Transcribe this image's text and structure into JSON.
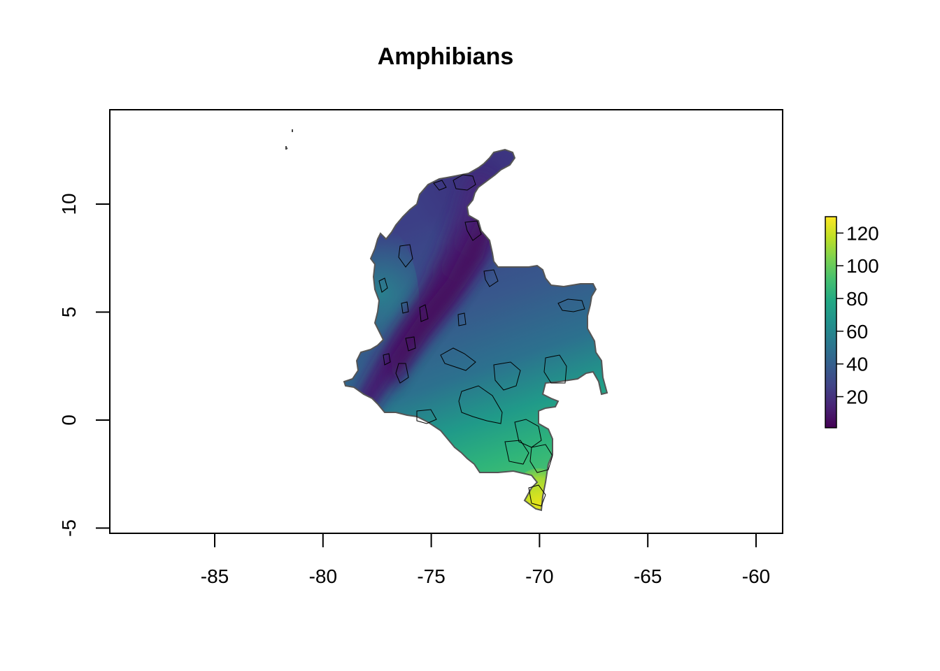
{
  "title": "Amphibians",
  "colors": {
    "background": "#ffffff",
    "frame": "#000000",
    "outline": "#555555",
    "polygons": "#000000"
  },
  "chart_data": {
    "type": "heatmap",
    "title": "Amphibians",
    "xlabel": "",
    "ylabel": "",
    "xlim": [
      -89.7,
      -58.7
    ],
    "ylim": [
      -5.3,
      14.3
    ],
    "x_ticks": [
      -85,
      -80,
      -75,
      -70,
      -65,
      -60
    ],
    "x_tick_labels": [
      "-85",
      "-80",
      "-75",
      "-70",
      "-65",
      "-60"
    ],
    "y_ticks": [
      -5,
      0,
      5,
      10
    ],
    "y_tick_labels": [
      "-5",
      "0",
      "5",
      "10"
    ],
    "colorscale": "viridis",
    "colorbar": {
      "range": [
        1,
        130
      ],
      "ticks": [
        20,
        40,
        60,
        80,
        100,
        120
      ],
      "tick_labels": [
        "20",
        "40",
        "60",
        "80",
        "100",
        "120"
      ],
      "placement": "right"
    },
    "legend": "colorbar right",
    "grid": false,
    "region_value_estimates": [
      {
        "lon": -71.5,
        "lat": 11.0,
        "value": 12
      },
      {
        "lon": -73.0,
        "lat": 9.0,
        "value": 28
      },
      {
        "lon": -76.5,
        "lat": 7.0,
        "value": 55
      },
      {
        "lon": -75.5,
        "lat": 4.5,
        "value": 8
      },
      {
        "lon": -77.0,
        "lat": 2.5,
        "value": 10
      },
      {
        "lon": -72.5,
        "lat": 6.5,
        "value": 10
      },
      {
        "lon": -70.0,
        "lat": 5.0,
        "value": 35
      },
      {
        "lon": -68.0,
        "lat": 3.0,
        "value": 45
      },
      {
        "lon": -74.5,
        "lat": 1.0,
        "value": 60
      },
      {
        "lon": -72.0,
        "lat": -1.0,
        "value": 85
      },
      {
        "lon": -70.0,
        "lat": -3.0,
        "value": 115
      }
    ]
  }
}
